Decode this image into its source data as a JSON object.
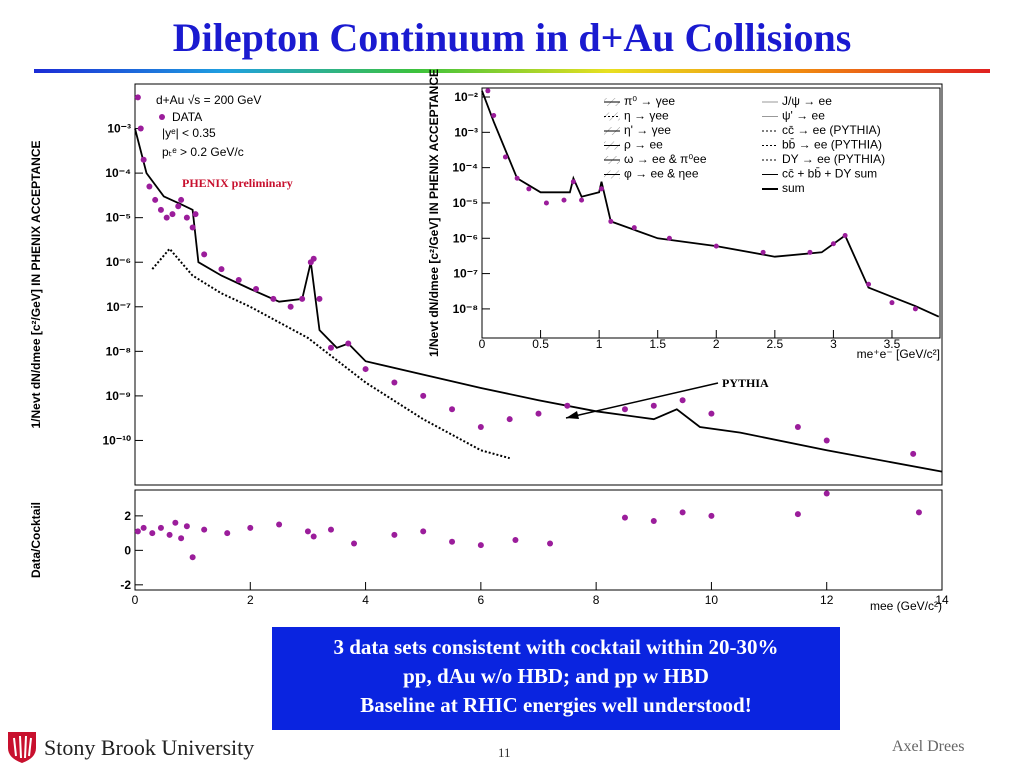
{
  "slide": {
    "title": "Dilepton Continuum in d+Au Collisions",
    "box_lines": [
      "3 data sets consistent with cocktail within 20-30%",
      "pp, dAu w/o HBD; and pp w HBD",
      "Baseline at RHIC energies well understood!"
    ],
    "logo": "Stony Brook University",
    "page": "11",
    "author": "Axel Drees"
  },
  "chart_data": [
    {
      "type": "scatter",
      "logy": true,
      "ylabel": "1/Nevt dN/dmee [c²/GeV] IN PHENIX ACCEPTANCE",
      "xlim": [
        0,
        14
      ],
      "ylim": [
        1e-11,
        0.01
      ],
      "yticks": [
        {
          "value": 0.001,
          "label": "10⁻³"
        },
        {
          "value": 0.0001,
          "label": "10⁻⁴"
        },
        {
          "value": 1e-05,
          "label": "10⁻⁵"
        },
        {
          "value": 1e-06,
          "label": "10⁻⁶"
        },
        {
          "value": 1e-07,
          "label": "10⁻⁷"
        },
        {
          "value": 1e-08,
          "label": "10⁻⁸"
        },
        {
          "value": 1e-09,
          "label": "10⁻⁹"
        },
        {
          "value": 1e-10,
          "label": "10⁻¹⁰"
        }
      ],
      "annotations": [
        "d+Au √s = 200 GeV",
        "DATA",
        "|yᵉ| < 0.35",
        "pₜᵉ > 0.2 GeV/c",
        "PHENIX preliminary",
        "PYTHIA"
      ],
      "series": [
        {
          "mode": "line",
          "color": "#000000",
          "x": [
            0,
            0.2,
            0.5,
            0.8,
            1.0,
            1.1,
            1.5,
            2,
            2.5,
            2.9,
            3.05,
            3.2,
            3.5,
            3.7,
            4,
            5,
            6,
            7,
            8,
            9,
            9.4,
            9.8,
            10.5,
            12,
            14
          ],
          "values": [
            0.001,
            0.0001,
            3e-05,
            2e-05,
            1.5e-05,
            1e-06,
            5e-07,
            2.5e-07,
            1.3e-07,
            1.5e-07,
            1e-06,
            3e-08,
            1.2e-08,
            1.5e-08,
            6e-09,
            3e-09,
            1.5e-09,
            8e-10,
            4.5e-10,
            3e-10,
            5e-10,
            2e-10,
            1.5e-10,
            6e-11,
            2e-11
          ]
        },
        {
          "mode": "dotted",
          "color": "#000000",
          "x": [
            0.3,
            0.6,
            1,
            1.5,
            2,
            3,
            4,
            5,
            6,
            6.5
          ],
          "values": [
            7e-07,
            2e-06,
            5e-07,
            2e-07,
            1e-07,
            2e-08,
            2e-09,
            3e-10,
            6e-11,
            4e-11
          ]
        },
        {
          "mode": "markers",
          "color": "#9b1d9b",
          "x": [
            0.05,
            0.1,
            0.15,
            0.25,
            0.35,
            0.45,
            0.55,
            0.65,
            0.75,
            0.8,
            0.9,
            1.0,
            1.05,
            1.2,
            1.5,
            1.8,
            2.1,
            2.4,
            2.7,
            2.9,
            3.05,
            3.1,
            3.2,
            3.4,
            3.7,
            4.0,
            4.5,
            5.0,
            5.5,
            6.0,
            6.5,
            7.0,
            7.5,
            8.5,
            9.0,
            9.5,
            10.0,
            11.5,
            12.0,
            13.5
          ],
          "values": [
            0.005,
            0.001,
            0.0002,
            5e-05,
            2.5e-05,
            1.5e-05,
            1e-05,
            1.2e-05,
            1.8e-05,
            2.5e-05,
            1e-05,
            6e-06,
            1.2e-05,
            1.5e-06,
            7e-07,
            4e-07,
            2.5e-07,
            1.5e-07,
            1e-07,
            1.5e-07,
            1e-06,
            1.2e-06,
            1.5e-07,
            1.2e-08,
            1.5e-08,
            4e-09,
            2e-09,
            1e-09,
            5e-10,
            2e-10,
            3e-10,
            4e-10,
            6e-10,
            5e-10,
            6e-10,
            8e-10,
            4e-10,
            2e-10,
            1e-10,
            5e-11
          ]
        }
      ]
    },
    {
      "type": "scatter",
      "logy": false,
      "xlabel": "mee (GeV/c²)",
      "ylabel": "Data/Cocktail",
      "xlim": [
        0,
        14
      ],
      "ylim": [
        -2.3,
        3.5
      ],
      "xticks": [
        0,
        2,
        4,
        6,
        8,
        10,
        12,
        14
      ],
      "yticks": [
        -2,
        0,
        2
      ],
      "series": [
        {
          "mode": "markers",
          "color": "#9b1d9b",
          "x": [
            0.05,
            0.15,
            0.3,
            0.45,
            0.6,
            0.7,
            0.8,
            0.9,
            1.0,
            1.2,
            1.6,
            2,
            2.5,
            3,
            3.1,
            3.4,
            3.8,
            4.5,
            5,
            5.5,
            6,
            6.6,
            7.2,
            8.5,
            9,
            9.5,
            10,
            11.5,
            12,
            13.6
          ],
          "values": [
            1.1,
            1.3,
            1.0,
            1.3,
            0.9,
            1.6,
            0.7,
            1.4,
            -0.4,
            1.2,
            1.0,
            1.3,
            1.5,
            1.1,
            0.8,
            1.2,
            0.4,
            0.9,
            1.1,
            0.5,
            0.3,
            0.6,
            0.4,
            1.9,
            1.7,
            2.2,
            2.0,
            2.1,
            3.3,
            2.2
          ]
        }
      ]
    },
    {
      "type": "scatter",
      "logy": true,
      "xlabel": "me⁺e⁻ [GeV/c²]",
      "ylabel": "1/Nevt dN/dmee [c²/GeV] IN PHENIX ACCEPTANCE",
      "xlim": [
        0,
        3.91
      ],
      "ylim": [
        1.5e-09,
        0.018
      ],
      "xticks": [
        0,
        0.5,
        1,
        1.5,
        2,
        2.5,
        3,
        3.5
      ],
      "yticks": [
        {
          "value": 0.01,
          "label": "10⁻²"
        },
        {
          "value": 0.001,
          "label": "10⁻³"
        },
        {
          "value": 0.0001,
          "label": "10⁻⁴"
        },
        {
          "value": 1e-05,
          "label": "10⁻⁵"
        },
        {
          "value": 1e-06,
          "label": "10⁻⁶"
        },
        {
          "value": 1e-07,
          "label": "10⁻⁷"
        },
        {
          "value": 1e-08,
          "label": "10⁻⁸"
        }
      ],
      "legend_entries": [
        "π⁰ → γee",
        "η → γee",
        "η' → γee",
        "ρ → ee",
        "ω → ee & π⁰ee",
        "φ → ee & ηee",
        "J/ψ → ee",
        "ψ' → ee",
        "cc̄ → ee (PYTHIA)",
        "bb̄ → ee (PYTHIA)",
        "DY → ee (PYTHIA)",
        "cc̄ + bb̄ + DY sum",
        "sum"
      ],
      "series": [
        {
          "mode": "line",
          "color": "#000000",
          "x": [
            0,
            0.1,
            0.3,
            0.5,
            0.75,
            0.78,
            0.85,
            1.0,
            1.02,
            1.1,
            1.5,
            2,
            2.5,
            2.9,
            3.1,
            3.3,
            3.7,
            3.9
          ],
          "values": [
            0.015,
            0.002,
            5e-05,
            2e-05,
            2e-05,
            5e-05,
            1.5e-05,
            2e-05,
            4e-05,
            3e-06,
            1e-06,
            6e-07,
            3e-07,
            4e-07,
            1.2e-06,
            4e-08,
            1.2e-08,
            6e-09
          ]
        },
        {
          "mode": "markers",
          "color": "#9b1d9b",
          "x": [
            0.05,
            0.1,
            0.2,
            0.3,
            0.4,
            0.55,
            0.7,
            0.78,
            0.85,
            1.02,
            1.1,
            1.3,
            1.6,
            2.0,
            2.4,
            2.8,
            3.0,
            3.1,
            3.3,
            3.5,
            3.7
          ],
          "values": [
            0.015,
            0.003,
            0.0002,
            5e-05,
            2.5e-05,
            1e-05,
            1.2e-05,
            4e-05,
            1.2e-05,
            2.5e-05,
            3e-06,
            2e-06,
            1e-06,
            6e-07,
            4e-07,
            4e-07,
            7e-07,
            1.2e-06,
            5e-08,
            1.5e-08,
            1e-08
          ]
        }
      ]
    }
  ]
}
